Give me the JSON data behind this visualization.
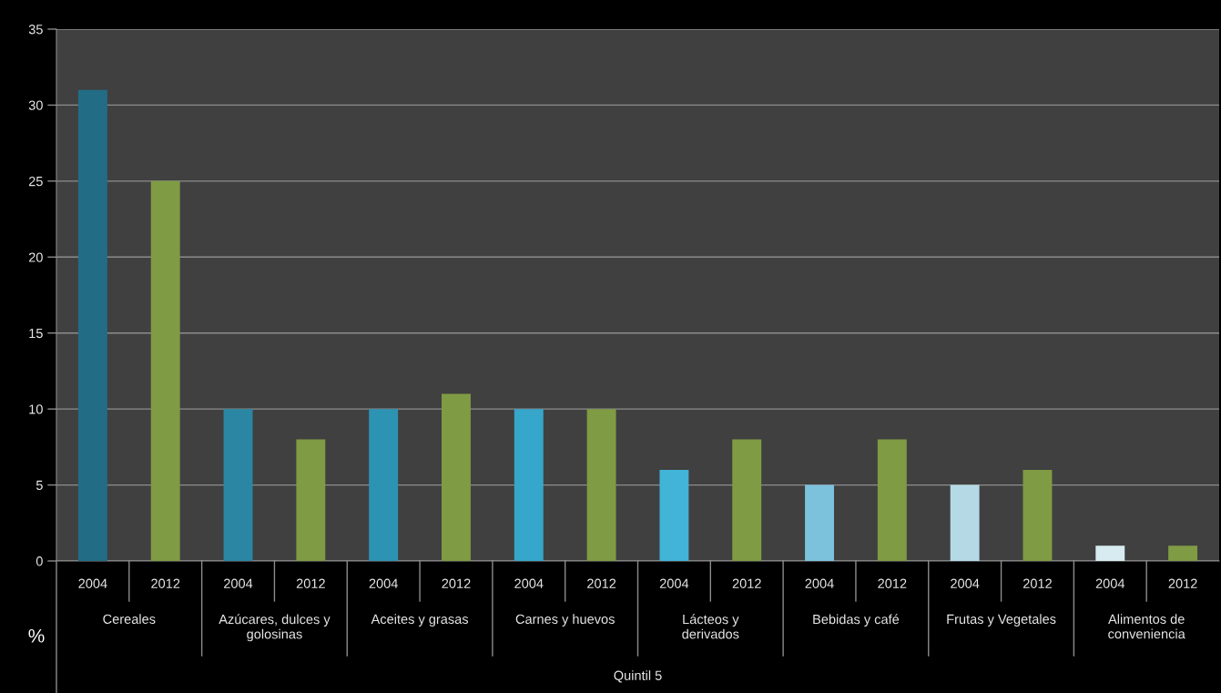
{
  "chart_data": {
    "type": "bar",
    "categories": [
      "Cereales",
      "Azúcares, dulces y\ngolosinas",
      "Aceites y grasas",
      "Carnes y huevos",
      "Lácteos y\nderivados",
      "Bebidas y café",
      "Frutas y Vegetales",
      "Alimentos de\nconveniencia"
    ],
    "series": [
      {
        "name": "2004",
        "colors": [
          "#226d85",
          "#2a86a3",
          "#2d93b3",
          "#36a6cb",
          "#41b4d8",
          "#7cc2dc",
          "#b5dae6",
          "#d8ebf1"
        ],
        "values": [
          31,
          10,
          10,
          10,
          6,
          5,
          5,
          1
        ]
      },
      {
        "name": "2012",
        "color": "#7f9b44",
        "values": [
          25,
          8,
          11,
          10,
          8,
          8,
          6,
          1
        ]
      }
    ],
    "xlabel": "Quintil 5",
    "ylabel": "%",
    "ylim": [
      0,
      35
    ],
    "yticks": [
      0,
      5,
      10,
      15,
      20,
      25,
      30,
      35
    ],
    "grid": "y"
  }
}
